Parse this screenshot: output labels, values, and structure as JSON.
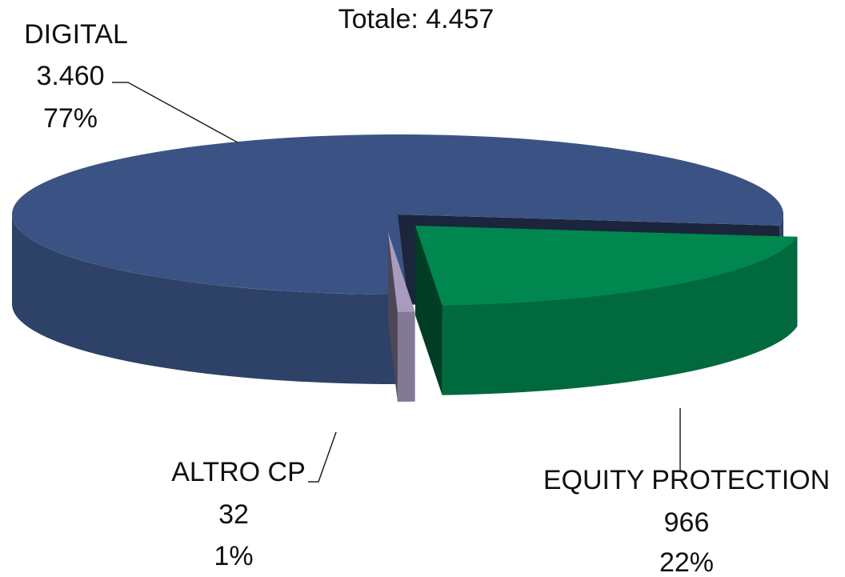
{
  "chart_data": {
    "type": "pie3d",
    "title": "Totale: 4.457",
    "categories": [
      "DIGITAL",
      "EQUITY PROTECTION",
      "ALTRO CP"
    ],
    "values": [
      3460,
      966,
      32
    ],
    "value_labels": [
      "3.460",
      "966",
      "32"
    ],
    "percentages": [
      77,
      22,
      1
    ],
    "percentage_labels": [
      "77%",
      "22%",
      "1%"
    ],
    "colors": [
      "#3b5384",
      "#00874f",
      "#a99bbe"
    ]
  }
}
